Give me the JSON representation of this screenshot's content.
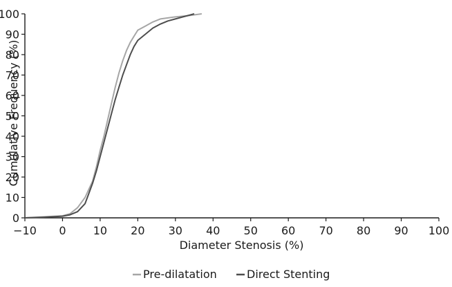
{
  "chart_data": {
    "type": "line",
    "xlabel": "Diameter Stenosis (%)",
    "ylabel": "Cumulative Frequency (%)",
    "xlim": [
      -10,
      100
    ],
    "ylim": [
      0,
      100
    ],
    "x_ticks": [
      -10,
      0,
      10,
      20,
      30,
      40,
      50,
      60,
      70,
      80,
      90,
      100
    ],
    "y_ticks": [
      0,
      10,
      20,
      30,
      40,
      50,
      60,
      70,
      80,
      90,
      100
    ],
    "grid": false,
    "legend_position": "bottom",
    "series": [
      {
        "name": "Pre-dilatation",
        "color": "#a6a6a6",
        "points": [
          [
            -10,
            0
          ],
          [
            -5,
            0.5
          ],
          [
            0,
            1
          ],
          [
            2,
            2
          ],
          [
            4,
            5
          ],
          [
            6,
            10
          ],
          [
            8,
            18
          ],
          [
            9,
            25
          ],
          [
            10,
            33
          ],
          [
            11,
            40
          ],
          [
            12,
            48
          ],
          [
            13,
            56
          ],
          [
            14,
            64
          ],
          [
            15,
            71
          ],
          [
            16,
            77
          ],
          [
            17,
            82
          ],
          [
            18,
            86
          ],
          [
            19,
            89
          ],
          [
            20,
            92
          ],
          [
            22,
            94
          ],
          [
            24,
            96
          ],
          [
            26,
            97.5
          ],
          [
            28,
            98
          ],
          [
            30,
            98.5
          ],
          [
            33,
            99
          ],
          [
            35,
            99.5
          ],
          [
            37,
            100
          ]
        ]
      },
      {
        "name": "Direct Stenting",
        "color": "#4d4d4d",
        "points": [
          [
            -10,
            0
          ],
          [
            -5,
            0.3
          ],
          [
            0,
            0.8
          ],
          [
            2,
            1.5
          ],
          [
            4,
            3
          ],
          [
            6,
            7
          ],
          [
            7,
            12
          ],
          [
            8,
            17
          ],
          [
            9,
            23
          ],
          [
            10,
            30
          ],
          [
            11,
            37
          ],
          [
            12,
            44
          ],
          [
            13,
            51
          ],
          [
            14,
            58
          ],
          [
            15,
            64
          ],
          [
            16,
            70
          ],
          [
            17,
            75
          ],
          [
            18,
            80
          ],
          [
            19,
            84
          ],
          [
            20,
            87
          ],
          [
            22,
            90
          ],
          [
            24,
            93
          ],
          [
            26,
            95
          ],
          [
            28,
            96.5
          ],
          [
            30,
            97.5
          ],
          [
            32,
            98.5
          ],
          [
            34,
            99.5
          ],
          [
            35,
            100
          ]
        ]
      }
    ]
  }
}
